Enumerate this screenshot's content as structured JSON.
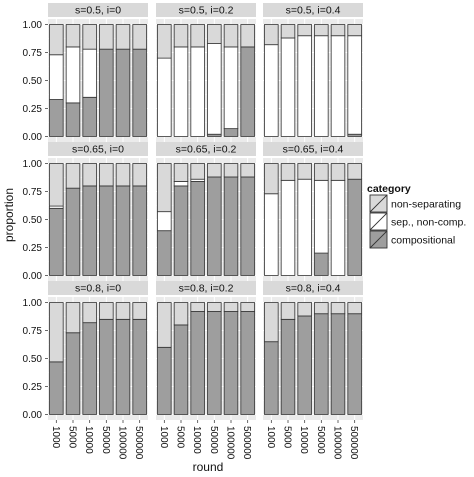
{
  "chart_data": {
    "type": "bar",
    "stacked": true,
    "facet_layout": "3x3",
    "ylabel": "proportion",
    "xlabel": "round",
    "x_categories": [
      "1000",
      "5000",
      "10000",
      "50000",
      "100000",
      "500000"
    ],
    "y_ticks": [
      "0.00",
      "0.25",
      "0.50",
      "0.75",
      "1.00"
    ],
    "ylim": [
      0,
      1
    ],
    "legend": {
      "title": "category",
      "placement": "right",
      "entries": [
        {
          "name": "non-separating",
          "color": "#d9d9d9"
        },
        {
          "name": "sep., non-comp.",
          "color": "#ffffff"
        },
        {
          "name": "compositional",
          "color": "#9e9e9e"
        }
      ]
    },
    "stack_order": [
      "compositional",
      "sep., non-comp.",
      "non-separating"
    ],
    "colors": {
      "panel_background": "#ebebeb",
      "strip_background": "#d9d9d9",
      "grid": "#ffffff",
      "bar_outline": "#333333"
    },
    "panels": [
      {
        "label": "s=0.5, i=0",
        "compositional": [
          0.33,
          0.3,
          0.35,
          0.78,
          0.78,
          0.78
        ],
        "sep_noncomp": [
          0.4,
          0.5,
          0.43,
          0.0,
          0.0,
          0.0
        ]
      },
      {
        "label": "s=0.5, i=0.2",
        "compositional": [
          0.0,
          0.0,
          0.0,
          0.02,
          0.07,
          0.8
        ],
        "sep_noncomp": [
          0.7,
          0.8,
          0.8,
          0.81,
          0.73,
          0.0
        ]
      },
      {
        "label": "s=0.5, i=0.4",
        "compositional": [
          0.0,
          0.0,
          0.0,
          0.0,
          0.0,
          0.02
        ],
        "sep_noncomp": [
          0.82,
          0.88,
          0.9,
          0.9,
          0.9,
          0.88
        ]
      },
      {
        "label": "s=0.65, i=0",
        "compositional": [
          0.6,
          0.78,
          0.8,
          0.8,
          0.8,
          0.8
        ],
        "sep_noncomp": [
          0.02,
          0.0,
          0.0,
          0.0,
          0.0,
          0.0
        ]
      },
      {
        "label": "s=0.65, i=0.2",
        "compositional": [
          0.4,
          0.8,
          0.84,
          0.88,
          0.88,
          0.88
        ],
        "sep_noncomp": [
          0.17,
          0.04,
          0.02,
          0.0,
          0.0,
          0.0
        ]
      },
      {
        "label": "s=0.65, i=0.4",
        "compositional": [
          0.0,
          0.0,
          0.0,
          0.2,
          0.0,
          0.86
        ],
        "sep_noncomp": [
          0.73,
          0.85,
          0.86,
          0.65,
          0.85,
          0.0
        ]
      },
      {
        "label": "s=0.8, i=0",
        "compositional": [
          0.47,
          0.73,
          0.82,
          0.85,
          0.85,
          0.85
        ],
        "sep_noncomp": [
          0.0,
          0.0,
          0.0,
          0.0,
          0.0,
          0.0
        ]
      },
      {
        "label": "s=0.8, i=0.2",
        "compositional": [
          0.6,
          0.8,
          0.92,
          0.92,
          0.92,
          0.92
        ],
        "sep_noncomp": [
          0.0,
          0.0,
          0.0,
          0.0,
          0.0,
          0.0
        ]
      },
      {
        "label": "s=0.8, i=0.4",
        "compositional": [
          0.65,
          0.85,
          0.88,
          0.9,
          0.9,
          0.9
        ],
        "sep_noncomp": [
          0.0,
          0.0,
          0.0,
          0.0,
          0.0,
          0.0
        ]
      }
    ]
  }
}
